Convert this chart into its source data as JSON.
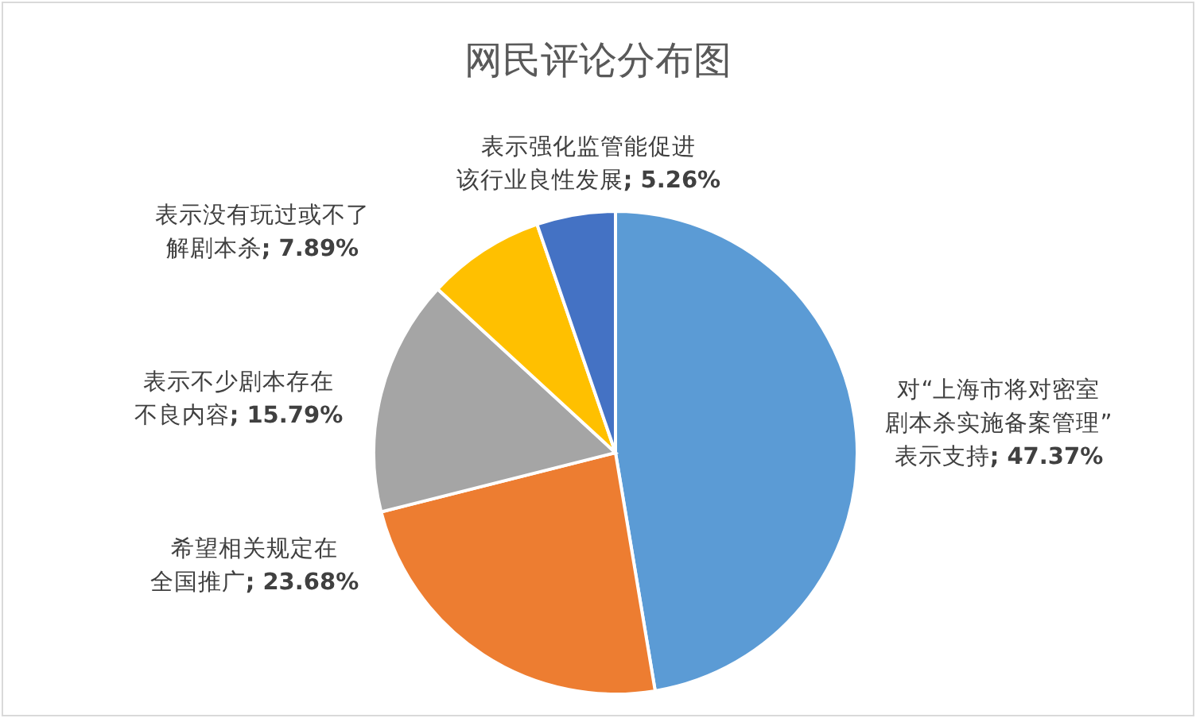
{
  "chart_data": {
    "type": "pie",
    "title": "网民评论分布图",
    "categories": [
      "对“上海市将对密室剧本杀实施备案管理”表示支持",
      "希望相关规定在全国推广",
      "表示不少剧本存在不良内容",
      "表示没有玩过或不了解剧本杀",
      "表示强化监管能促进该行业良性发展"
    ],
    "values": [
      47.37,
      23.68,
      15.79,
      7.89,
      5.26
    ],
    "value_labels": [
      "; 47.37%",
      "; 23.68%",
      "; 15.79%",
      "; 7.89%",
      "; 5.26%"
    ],
    "colors": [
      "#5b9bd5",
      "#ed7d31",
      "#a5a5a5",
      "#ffc000",
      "#4472c4"
    ]
  }
}
